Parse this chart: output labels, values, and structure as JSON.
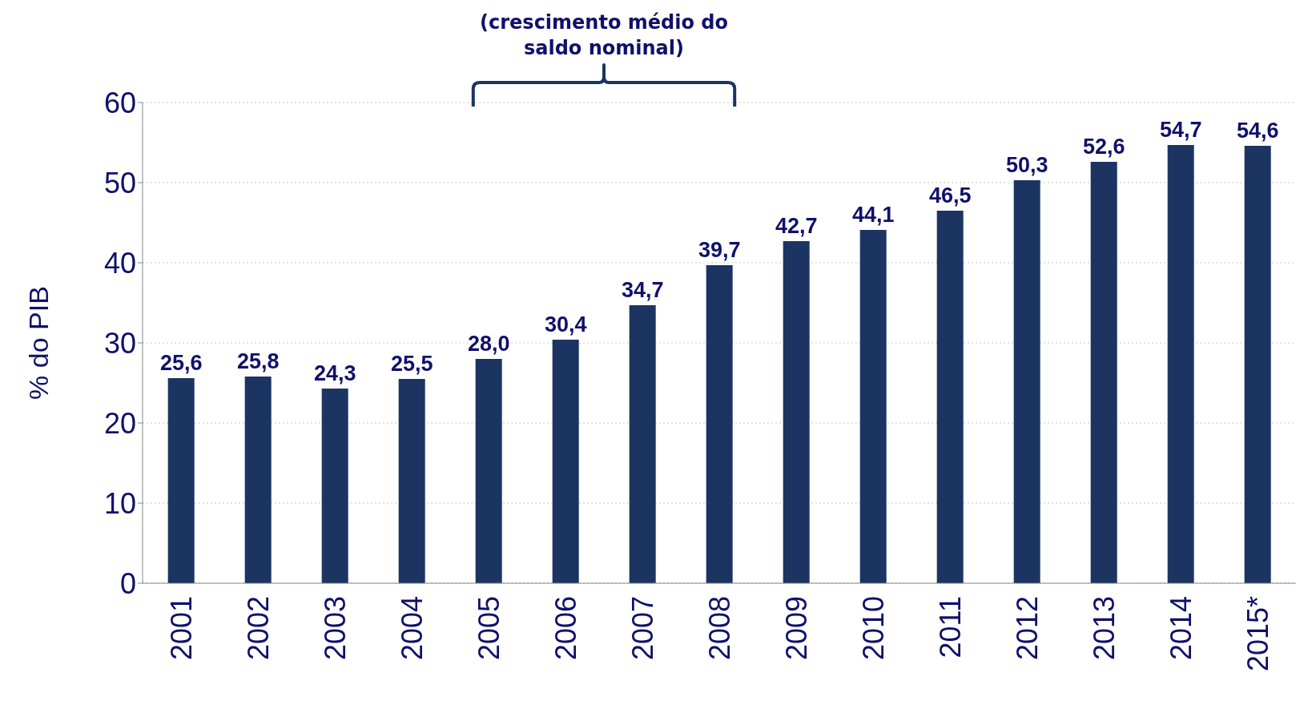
{
  "chart_data": {
    "type": "bar",
    "ylabel": "% do PIB",
    "annotations": [
      "(crescimento médio do saldo nominal)"
    ],
    "categories": [
      "2001",
      "2002",
      "2003",
      "2004",
      "2005",
      "2006",
      "2007",
      "2008",
      "2009",
      "2010",
      "2011",
      "2012",
      "2013",
      "2014",
      "2015*"
    ],
    "values": [
      25.6,
      25.8,
      24.3,
      25.5,
      28.0,
      30.4,
      34.7,
      39.7,
      42.7,
      44.1,
      46.5,
      50.3,
      52.6,
      54.7,
      54.6
    ],
    "value_labels": [
      "25,6",
      "25,8",
      "24,3",
      "25,5",
      "28,0",
      "30,4",
      "34,7",
      "39,7",
      "42,7",
      "44,1",
      "46,5",
      "50,3",
      "52,6",
      "54,7",
      "54,6"
    ],
    "color": "#1b3461",
    "ylim": [
      0,
      60
    ],
    "yticks": [
      0,
      10,
      20,
      30,
      40,
      50,
      60
    ],
    "grid": "y"
  }
}
